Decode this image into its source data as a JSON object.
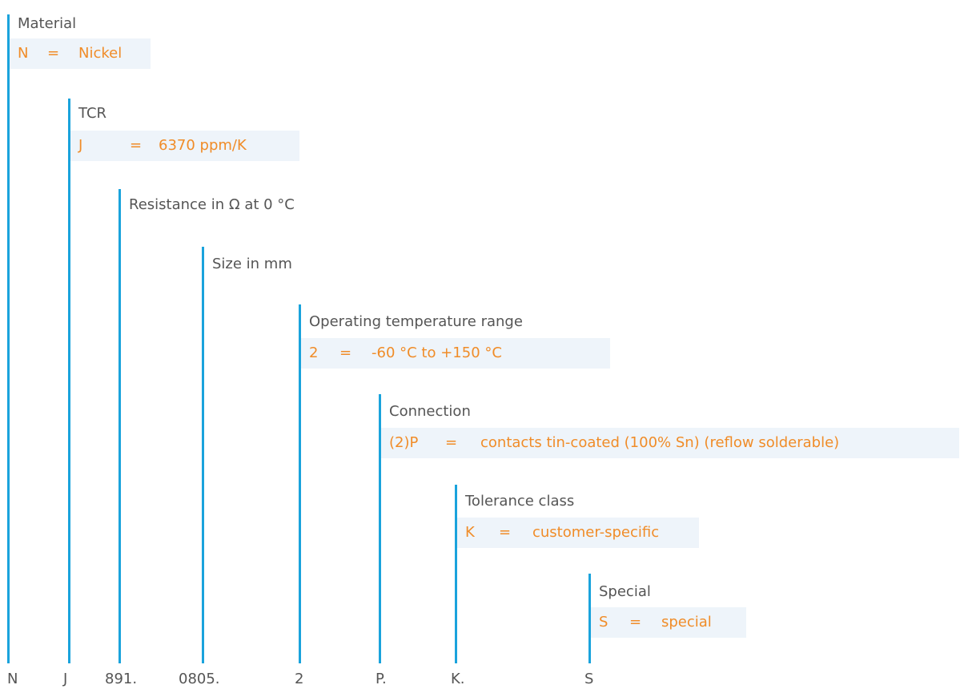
{
  "colors": {
    "line": "#1aa3dc",
    "value_text": "#f08c28",
    "value_bg": "#eef4fa",
    "title_text": "#555555"
  },
  "fields": [
    {
      "title": "Material",
      "code": "N",
      "eq": "=",
      "value": "Nickel"
    },
    {
      "title": "TCR",
      "code": "J",
      "eq": "=",
      "value": "6370 ppm/K"
    },
    {
      "title": "Resistance in Ω at 0 °C"
    },
    {
      "title": "Size in mm"
    },
    {
      "title": "Operating temperature range",
      "code": "2",
      "eq": "=",
      "value": "-60 °C to +150 °C"
    },
    {
      "title": "Connection",
      "code": "(2)P",
      "eq": "=",
      "value": "contacts tin-coated (100% Sn) (reflow solderable)"
    },
    {
      "title": "Tolerance class",
      "code": "K",
      "eq": "=",
      "value": "customer-specific"
    },
    {
      "title": "Special",
      "code": "S",
      "eq": "=",
      "value": "special"
    }
  ],
  "part_code": [
    "N",
    "J",
    "891.",
    "0805.",
    "2",
    "P.",
    "K.",
    "S"
  ]
}
